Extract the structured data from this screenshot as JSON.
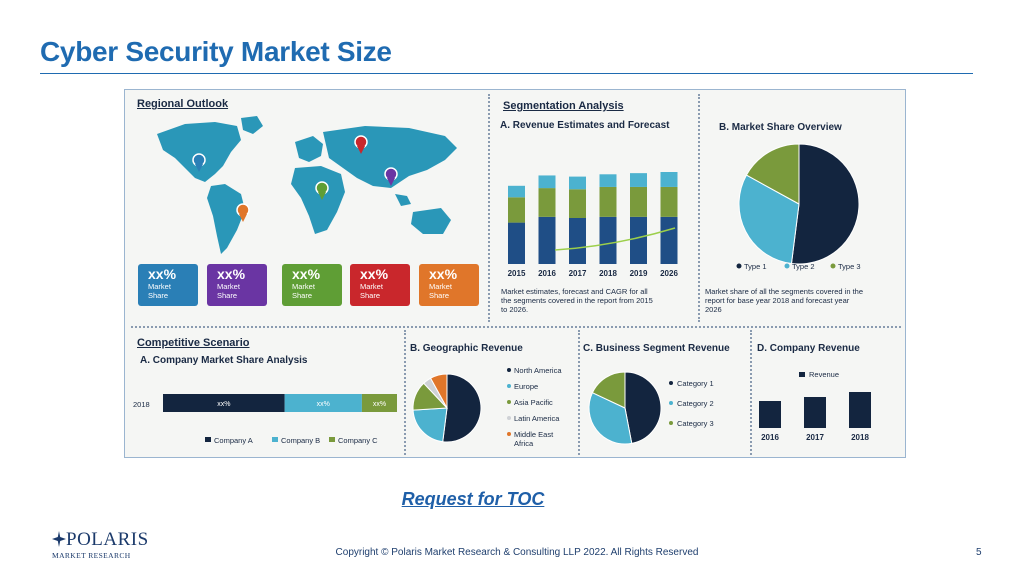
{
  "slide": {
    "title": "Cyber Security Market Size",
    "toc_link": "Request for TOC",
    "copyright": "Copyright © Polaris Market Research & Consulting LLP 2022. All Rights Reserved",
    "page_number": "5",
    "logo": {
      "name": "POLARIS",
      "subtitle": "MARKET RESEARCH"
    },
    "colors": {
      "title": "#1f6bb1",
      "navy": "#1b3357",
      "teal": "#4cb2cf",
      "green": "#7a9a3c",
      "map": "#2a97b8"
    }
  },
  "infographic": {
    "regional": {
      "title": "Regional Outlook",
      "boxes": [
        {
          "pct": "xx%",
          "l1": "Market",
          "l2": "Share",
          "color": "#2a7fb6"
        },
        {
          "pct": "xx%",
          "l1": "Market",
          "l2": "Share",
          "color": "#6a35a3"
        },
        {
          "pct": "xx%",
          "l1": "Market",
          "l2": "Share",
          "color": "#5f9e35"
        },
        {
          "pct": "xx%",
          "l1": "Market",
          "l2": "Share",
          "color": "#c9272c"
        },
        {
          "pct": "xx%",
          "l1": "Market",
          "l2": "Share",
          "color": "#e0762a"
        }
      ],
      "pin_icons": [
        "map-pin-blue",
        "map-pin-orange",
        "map-pin-green",
        "map-pin-purple",
        "map-pin-red"
      ]
    },
    "segmentation": {
      "title": "Segmentation Analysis",
      "revenue": {
        "title": "A. Revenue Estimates and Forecast",
        "note": [
          "Market estimates, forecast and CAGR for all",
          "the segments covered in the report from 2015",
          "to 2026."
        ]
      },
      "share": {
        "title": "B. Market Share Overview",
        "note": [
          "Market share of all the segments covered in the",
          "report for base year 2018 and forecast year",
          "2026"
        ]
      }
    },
    "competitive": {
      "title": "Competitive Scenario",
      "subtitle": "A. Company Market Share Analysis"
    },
    "geographic": {
      "title": "B. Geographic Revenue"
    },
    "business": {
      "title": "C. Business Segment Revenue"
    },
    "company_rev": {
      "title": "D. Company Revenue"
    }
  },
  "chart_data": [
    {
      "type": "bar",
      "id": "revenue-estimates",
      "title": "A. Revenue Estimates and Forecast",
      "categories": [
        "2015",
        "2016",
        "2017",
        "2018",
        "2019",
        "2026"
      ],
      "series": [
        {
          "values": [
            3.6,
            4.1,
            4.0,
            4.1,
            4.1,
            4.1
          ],
          "color": "#1f4e86"
        },
        {
          "values": [
            2.2,
            2.5,
            2.5,
            2.6,
            2.6,
            2.6
          ],
          "color": "#7a9a3c"
        },
        {
          "values": [
            1.0,
            1.1,
            1.1,
            1.1,
            1.2,
            1.3
          ],
          "color": "#4cb2cf"
        }
      ],
      "trend_color": "#9ccf4a"
    },
    {
      "type": "pie",
      "id": "market-share-overview",
      "title": "B. Market Share Overview",
      "labels": [
        "Type 1",
        "Type 2",
        "Type 3"
      ],
      "values": [
        52,
        31,
        17
      ],
      "colors": [
        "#13253f",
        "#4cb2cf",
        "#7a9a3c"
      ]
    },
    {
      "type": "bar",
      "id": "company-market-share",
      "title": "A. Company Market Share Analysis",
      "orientation": "horizontal-stacked",
      "categories": [
        "2018"
      ],
      "series": [
        {
          "name": "Company  A",
          "values": [
            52
          ],
          "label": "xx%",
          "color": "#13253f"
        },
        {
          "name": "Company B",
          "values": [
            33
          ],
          "label": "xx%",
          "color": "#4cb2cf"
        },
        {
          "name": "Company C",
          "values": [
            15
          ],
          "label": "xx%",
          "color": "#7a9a3c"
        }
      ]
    },
    {
      "type": "pie",
      "id": "geographic-revenue",
      "title": "B. Geographic Revenue",
      "labels": [
        "North America",
        "Europe",
        "Asia Pacific",
        "Latin America",
        "Middle East Africa"
      ],
      "legend_lines": [
        [
          "North America"
        ],
        [
          "Europe"
        ],
        [
          "Asia Pacific"
        ],
        [
          "Latin America"
        ],
        [
          "Middle East",
          "Africa"
        ]
      ],
      "values": [
        52,
        22,
        14,
        4,
        8
      ],
      "colors": [
        "#13253f",
        "#4cb2cf",
        "#7a9a3c",
        "#cfd2d6",
        "#e0762a"
      ]
    },
    {
      "type": "pie",
      "id": "business-segment-revenue",
      "title": "C. Business Segment Revenue",
      "labels": [
        "Category 1",
        "Category 2",
        "Category 3"
      ],
      "values": [
        47,
        35,
        18
      ],
      "colors": [
        "#13253f",
        "#4cb2cf",
        "#7a9a3c"
      ]
    },
    {
      "type": "bar",
      "id": "company-revenue",
      "title": "D. Company Revenue",
      "categories": [
        "2016",
        "2017",
        "2018"
      ],
      "series": [
        {
          "name": "Revenue",
          "values": [
            27,
            31,
            36
          ],
          "color": "#13253f"
        }
      ]
    }
  ]
}
